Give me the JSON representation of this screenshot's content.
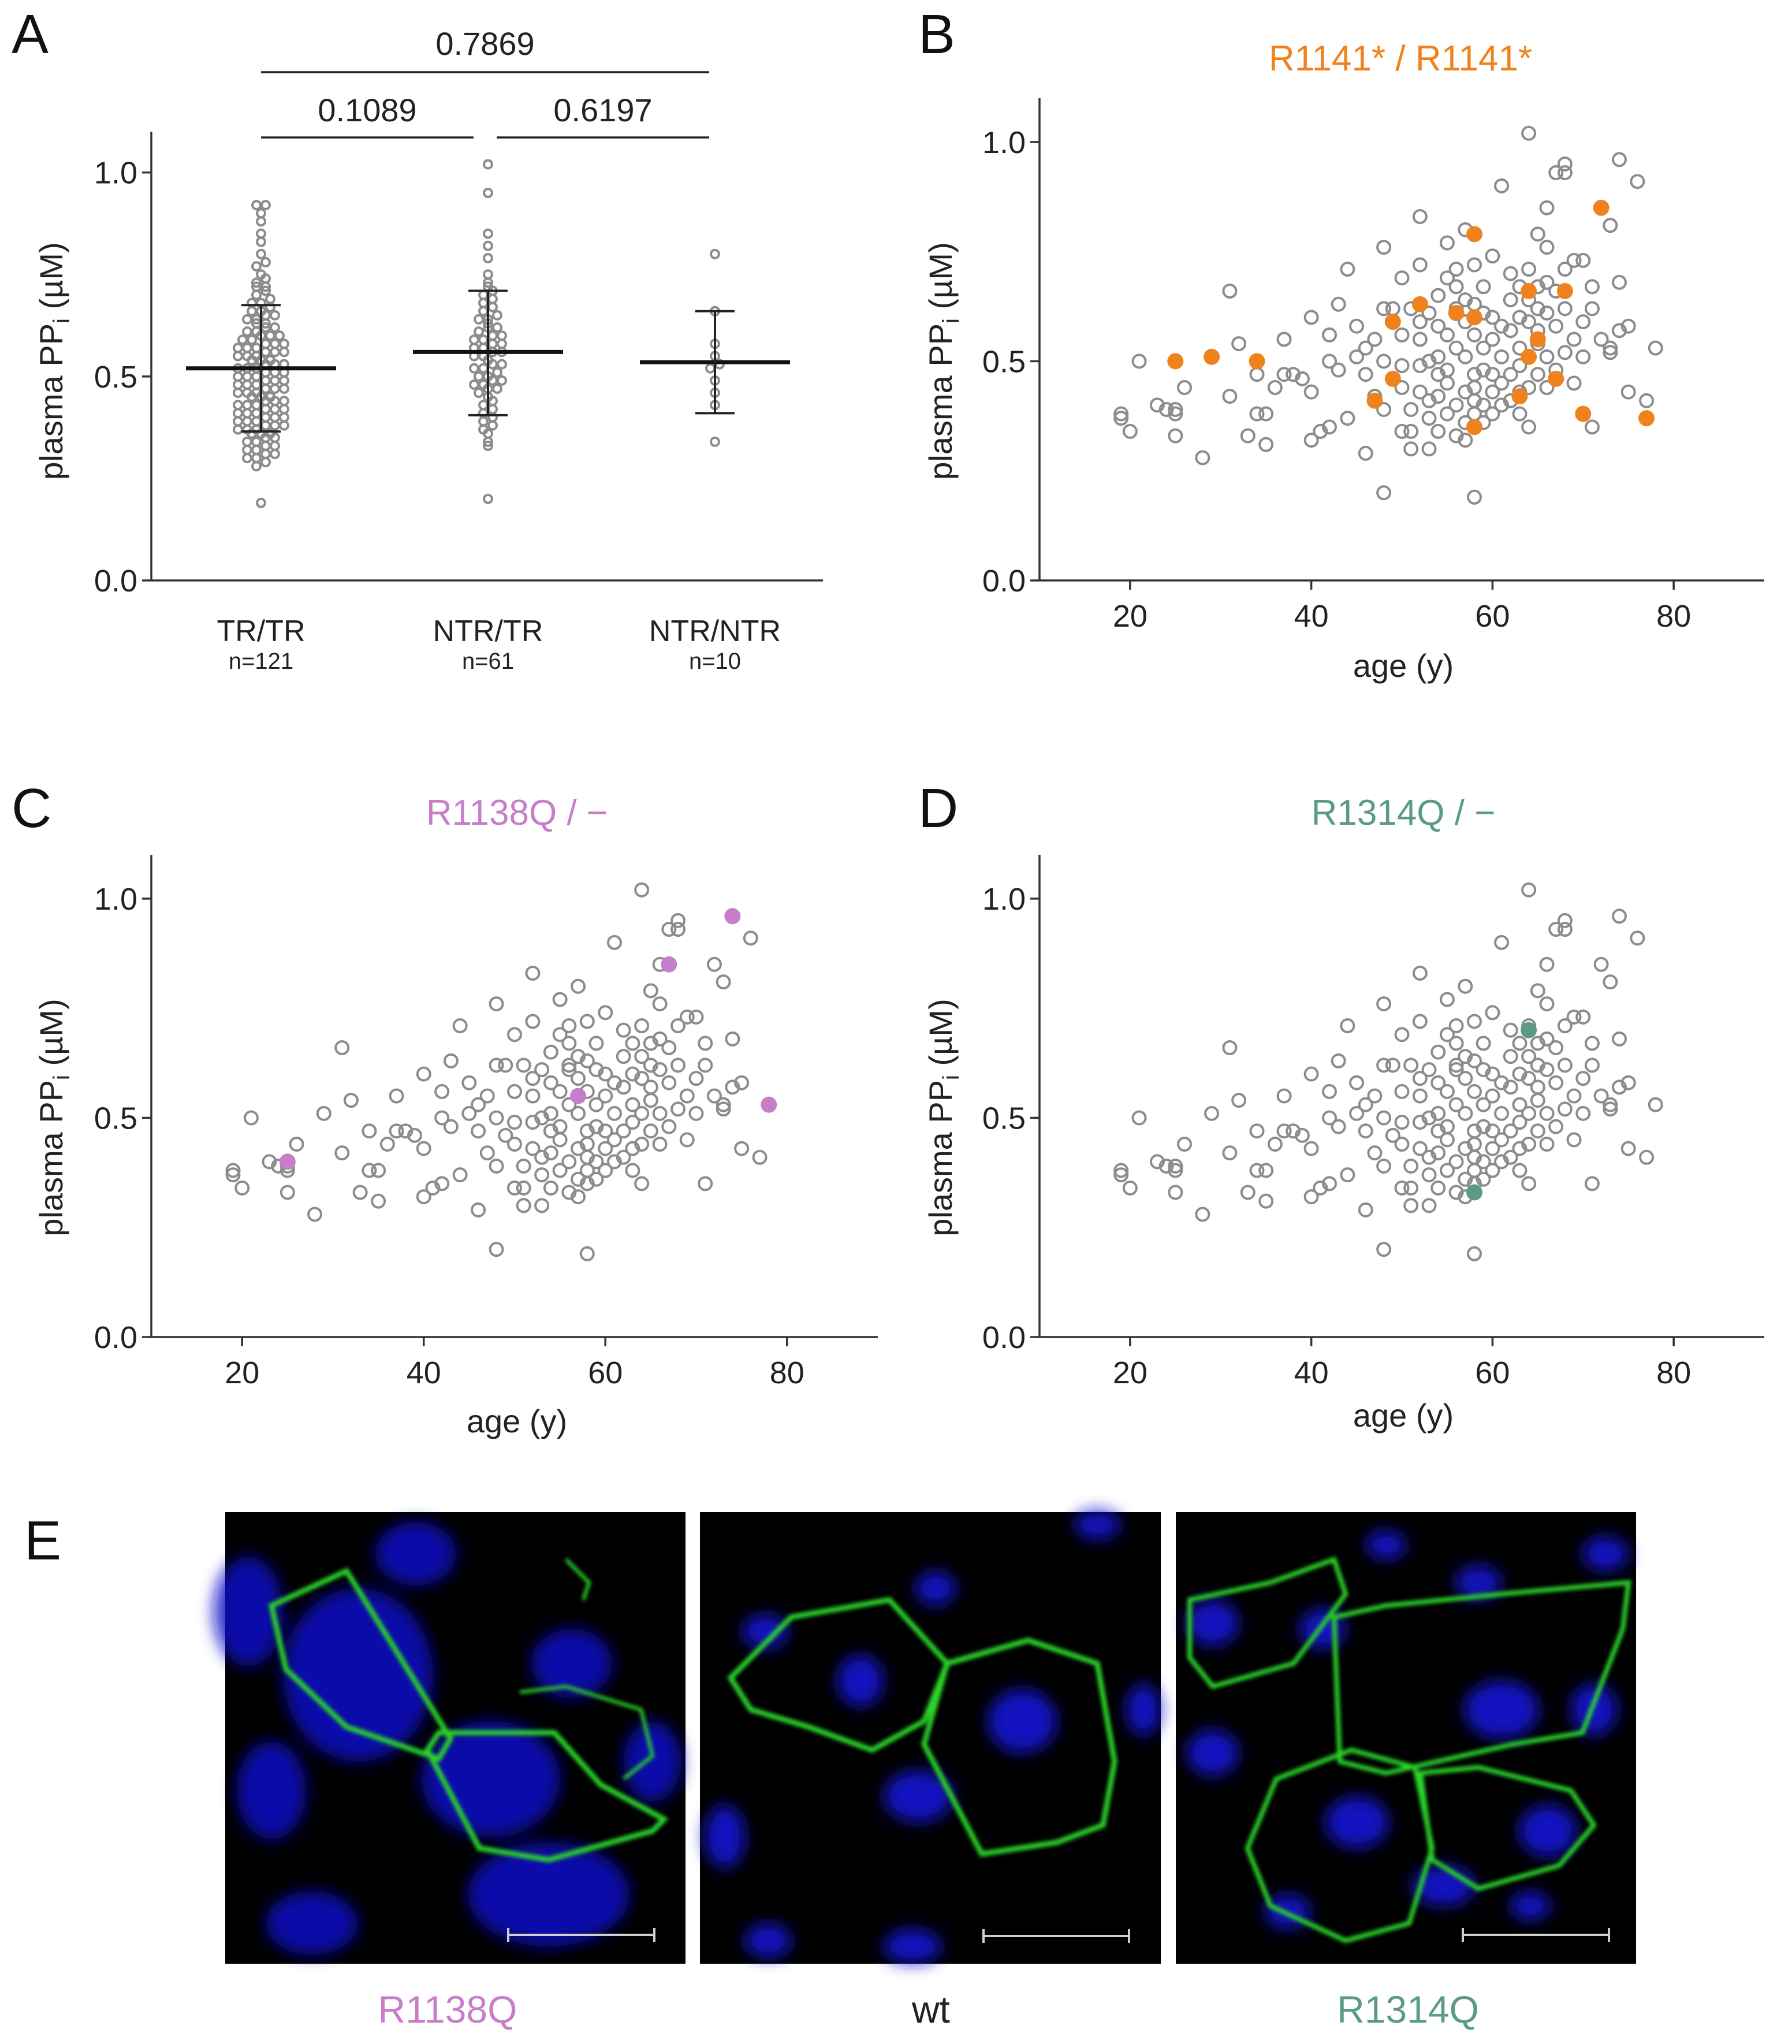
{
  "figure": {
    "panel_letters": [
      "A",
      "B",
      "C",
      "D",
      "E"
    ],
    "colors": {
      "background_point": "#8c8c8c",
      "R1141": "#f0821e",
      "R1138Q": "#c77ec9",
      "R1314Q": "#5b9a86",
      "wt": "#222222",
      "membrane_stain": "#2bd62b",
      "nuclear_stain": "#1414e6"
    }
  },
  "background_cohort": [
    [
      19,
      0.38
    ],
    [
      19,
      0.37
    ],
    [
      20,
      0.34
    ],
    [
      21,
      0.5
    ],
    [
      23,
      0.4
    ],
    [
      24,
      0.39
    ],
    [
      25,
      0.39
    ],
    [
      25,
      0.38
    ],
    [
      25,
      0.33
    ],
    [
      26,
      0.44
    ],
    [
      28,
      0.28
    ],
    [
      29,
      0.51
    ],
    [
      31,
      0.42
    ],
    [
      31,
      0.66
    ],
    [
      32,
      0.54
    ],
    [
      33,
      0.33
    ],
    [
      34,
      0.38
    ],
    [
      34,
      0.47
    ],
    [
      35,
      0.31
    ],
    [
      35,
      0.38
    ],
    [
      36,
      0.44
    ],
    [
      37,
      0.47
    ],
    [
      37,
      0.55
    ],
    [
      38,
      0.47
    ],
    [
      39,
      0.46
    ],
    [
      40,
      0.32
    ],
    [
      40,
      0.43
    ],
    [
      40,
      0.6
    ],
    [
      41,
      0.34
    ],
    [
      42,
      0.35
    ],
    [
      42,
      0.5
    ],
    [
      42,
      0.56
    ],
    [
      43,
      0.48
    ],
    [
      43,
      0.63
    ],
    [
      44,
      0.37
    ],
    [
      44,
      0.71
    ],
    [
      45,
      0.51
    ],
    [
      45,
      0.58
    ],
    [
      46,
      0.29
    ],
    [
      46,
      0.53
    ],
    [
      47,
      0.42
    ],
    [
      48,
      0.2
    ],
    [
      48,
      0.39
    ],
    [
      48,
      0.5
    ],
    [
      48,
      0.62
    ],
    [
      48,
      0.76
    ],
    [
      49,
      0.46
    ],
    [
      49,
      0.62
    ],
    [
      50,
      0.34
    ],
    [
      50,
      0.49
    ],
    [
      50,
      0.56
    ],
    [
      50,
      0.69
    ],
    [
      51,
      0.34
    ],
    [
      51,
      0.3
    ],
    [
      51,
      0.62
    ],
    [
      51,
      0.39
    ],
    [
      52,
      0.55
    ],
    [
      52,
      0.49
    ],
    [
      52,
      0.43
    ],
    [
      52,
      0.72
    ],
    [
      52,
      0.83
    ],
    [
      53,
      0.37
    ],
    [
      53,
      0.3
    ],
    [
      53,
      0.5
    ],
    [
      53,
      0.61
    ],
    [
      53,
      0.41
    ],
    [
      54,
      0.51
    ],
    [
      54,
      0.47
    ],
    [
      54,
      0.58
    ],
    [
      54,
      0.34
    ],
    [
      54,
      0.65
    ],
    [
      55,
      0.48
    ],
    [
      55,
      0.56
    ],
    [
      55,
      0.38
    ],
    [
      55,
      0.69
    ],
    [
      55,
      0.77
    ],
    [
      55,
      0.45
    ],
    [
      56,
      0.4
    ],
    [
      56,
      0.53
    ],
    [
      56,
      0.62
    ],
    [
      56,
      0.33
    ],
    [
      56,
      0.61
    ],
    [
      56,
      0.71
    ],
    [
      57,
      0.36
    ],
    [
      57,
      0.43
    ],
    [
      57,
      0.51
    ],
    [
      57,
      0.59
    ],
    [
      57,
      0.32
    ],
    [
      57,
      0.8
    ],
    [
      57,
      0.64
    ],
    [
      58,
      0.35
    ],
    [
      58,
      0.38
    ],
    [
      58,
      0.41
    ],
    [
      58,
      0.44
    ],
    [
      58,
      0.47
    ],
    [
      58,
      0.19
    ],
    [
      58,
      0.63
    ],
    [
      58,
      0.72
    ],
    [
      59,
      0.4
    ],
    [
      59,
      0.53
    ],
    [
      59,
      0.36
    ],
    [
      59,
      0.67
    ],
    [
      59,
      0.48
    ],
    [
      60,
      0.43
    ],
    [
      60,
      0.55
    ],
    [
      60,
      0.6
    ],
    [
      60,
      0.38
    ],
    [
      60,
      0.74
    ],
    [
      61,
      0.4
    ],
    [
      61,
      0.51
    ],
    [
      61,
      0.45
    ],
    [
      61,
      0.9
    ],
    [
      61,
      0.58
    ],
    [
      62,
      0.47
    ],
    [
      62,
      0.57
    ],
    [
      62,
      0.64
    ],
    [
      62,
      0.7
    ],
    [
      63,
      0.43
    ],
    [
      63,
      0.53
    ],
    [
      63,
      0.6
    ],
    [
      63,
      0.67
    ],
    [
      63,
      0.38
    ],
    [
      64,
      0.44
    ],
    [
      64,
      0.51
    ],
    [
      64,
      0.59
    ],
    [
      64,
      0.64
    ],
    [
      64,
      0.71
    ],
    [
      64,
      1.02
    ],
    [
      64,
      0.35
    ],
    [
      65,
      0.47
    ],
    [
      65,
      0.57
    ],
    [
      65,
      0.62
    ],
    [
      65,
      0.67
    ],
    [
      65,
      0.79
    ],
    [
      66,
      0.44
    ],
    [
      66,
      0.51
    ],
    [
      66,
      0.68
    ],
    [
      66,
      0.76
    ],
    [
      66,
      0.85
    ],
    [
      67,
      0.48
    ],
    [
      67,
      0.58
    ],
    [
      67,
      0.93
    ],
    [
      67,
      0.66
    ],
    [
      68,
      0.95
    ],
    [
      68,
      0.52
    ],
    [
      68,
      0.62
    ],
    [
      68,
      0.71
    ],
    [
      68,
      0.93
    ],
    [
      69,
      0.45
    ],
    [
      69,
      0.55
    ],
    [
      69,
      0.73
    ],
    [
      70,
      0.51
    ],
    [
      70,
      0.59
    ],
    [
      70,
      0.73
    ],
    [
      71,
      0.35
    ],
    [
      71,
      0.62
    ],
    [
      71,
      0.67
    ],
    [
      72,
      0.55
    ],
    [
      72,
      0.85
    ],
    [
      73,
      0.53
    ],
    [
      73,
      0.81
    ],
    [
      73,
      0.52
    ],
    [
      74,
      0.57
    ],
    [
      74,
      0.68
    ],
    [
      74,
      0.96
    ],
    [
      75,
      0.58
    ],
    [
      75,
      0.43
    ],
    [
      76,
      0.91
    ],
    [
      77,
      0.41
    ],
    [
      78,
      0.53
    ],
    [
      46,
      0.47
    ],
    [
      52,
      0.59
    ],
    [
      56,
      0.67
    ],
    [
      60,
      0.47
    ],
    [
      62,
      0.41
    ],
    [
      66,
      0.61
    ],
    [
      50,
      0.44
    ],
    [
      54,
      0.42
    ],
    [
      58,
      0.56
    ],
    [
      63,
      0.49
    ],
    [
      47,
      0.55
    ],
    [
      59,
      0.61
    ],
    [
      65,
      0.54
    ]
  ],
  "panels": {
    "A": {
      "letter": "A",
      "chart_data": {
        "type": "scatter",
        "subtype": "dot-plot-with-mean-sd",
        "categories": [
          {
            "label": "TR/TR",
            "n_label": "n=121",
            "mean": 0.52,
            "sd_low": 0.365,
            "sd_high": 0.675,
            "points": [
              0.19,
              0.28,
              0.29,
              0.3,
              0.3,
              0.31,
              0.31,
              0.32,
              0.32,
              0.33,
              0.33,
              0.34,
              0.34,
              0.35,
              0.35,
              0.36,
              0.36,
              0.36,
              0.37,
              0.37,
              0.37,
              0.38,
              0.38,
              0.38,
              0.39,
              0.39,
              0.39,
              0.4,
              0.4,
              0.4,
              0.41,
              0.41,
              0.41,
              0.42,
              0.42,
              0.42,
              0.43,
              0.43,
              0.43,
              0.44,
              0.44,
              0.44,
              0.45,
              0.45,
              0.45,
              0.46,
              0.46,
              0.46,
              0.47,
              0.47,
              0.47,
              0.48,
              0.48,
              0.48,
              0.49,
              0.49,
              0.49,
              0.5,
              0.5,
              0.5,
              0.51,
              0.51,
              0.51,
              0.52,
              0.52,
              0.52,
              0.53,
              0.53,
              0.53,
              0.54,
              0.54,
              0.54,
              0.55,
              0.55,
              0.55,
              0.56,
              0.56,
              0.56,
              0.57,
              0.57,
              0.57,
              0.58,
              0.58,
              0.58,
              0.59,
              0.59,
              0.6,
              0.6,
              0.6,
              0.61,
              0.61,
              0.62,
              0.62,
              0.63,
              0.63,
              0.64,
              0.64,
              0.65,
              0.65,
              0.66,
              0.66,
              0.67,
              0.68,
              0.68,
              0.69,
              0.7,
              0.71,
              0.72,
              0.72,
              0.73,
              0.74,
              0.75,
              0.77,
              0.78,
              0.8,
              0.83,
              0.85,
              0.88,
              0.9,
              0.92,
              0.92
            ]
          },
          {
            "label": "NTR/TR",
            "n_label": "n=61",
            "mean": 0.56,
            "sd_low": 0.405,
            "sd_high": 0.71,
            "points": [
              0.2,
              0.33,
              0.34,
              0.36,
              0.37,
              0.38,
              0.39,
              0.4,
              0.41,
              0.42,
              0.43,
              0.44,
              0.45,
              0.46,
              0.47,
              0.47,
              0.48,
              0.48,
              0.49,
              0.49,
              0.5,
              0.5,
              0.51,
              0.52,
              0.52,
              0.53,
              0.53,
              0.54,
              0.55,
              0.55,
              0.56,
              0.56,
              0.57,
              0.57,
              0.58,
              0.58,
              0.59,
              0.59,
              0.6,
              0.6,
              0.61,
              0.62,
              0.62,
              0.63,
              0.64,
              0.64,
              0.65,
              0.66,
              0.67,
              0.68,
              0.69,
              0.7,
              0.71,
              0.72,
              0.73,
              0.75,
              0.79,
              0.82,
              0.85,
              0.95,
              1.02
            ]
          },
          {
            "label": "NTR/NTR",
            "n_label": "n=10",
            "mean": 0.535,
            "sd_low": 0.41,
            "sd_high": 0.66,
            "points": [
              0.34,
              0.43,
              0.46,
              0.49,
              0.52,
              0.53,
              0.55,
              0.58,
              0.66,
              0.8
            ]
          }
        ],
        "ylabel": "plasma PP",
        "ylabel_sub": "i",
        "ylabel_unit": " (µM)",
        "ylim": [
          0,
          1.1
        ],
        "yticks": [
          "0.0",
          "0.5",
          "1.0"
        ],
        "comparisons": [
          {
            "from": 0,
            "to": 1,
            "p": "0.1089"
          },
          {
            "from": 1,
            "to": 2,
            "p": "0.6197"
          },
          {
            "from": 0,
            "to": 2,
            "p": "0.7869"
          }
        ]
      }
    },
    "B": {
      "letter": "B",
      "chart_data": {
        "type": "scatter",
        "title": "R1141* / R1141*",
        "title_color": "#f0821e",
        "xlabel": "age (y)",
        "ylabel": "plasma PP",
        "ylabel_sub": "i",
        "ylabel_unit": " (µM)",
        "xlim": [
          10,
          90
        ],
        "ylim": [
          0,
          1.1
        ],
        "xticks": [
          "20",
          "40",
          "60",
          "80"
        ],
        "yticks": [
          "0.0",
          "0.5",
          "1.0"
        ],
        "highlight_color": "#f0821e",
        "highlight": [
          [
            25,
            0.5
          ],
          [
            29,
            0.51
          ],
          [
            34,
            0.5
          ],
          [
            47,
            0.41
          ],
          [
            49,
            0.46
          ],
          [
            49,
            0.59
          ],
          [
            52,
            0.63
          ],
          [
            56,
            0.61
          ],
          [
            58,
            0.79
          ],
          [
            58,
            0.6
          ],
          [
            58,
            0.35
          ],
          [
            63,
            0.42
          ],
          [
            64,
            0.51
          ],
          [
            64,
            0.66
          ],
          [
            65,
            0.55
          ],
          [
            67,
            0.46
          ],
          [
            68,
            0.66
          ],
          [
            70,
            0.38
          ],
          [
            72,
            0.85
          ],
          [
            77,
            0.37
          ]
        ]
      }
    },
    "C": {
      "letter": "C",
      "chart_data": {
        "type": "scatter",
        "title": "R1138Q / −",
        "title_color": "#c77ec9",
        "xlabel": "age (y)",
        "ylabel": "plasma PP",
        "ylabel_sub": "i",
        "ylabel_unit": " (µM)",
        "xlim": [
          10,
          90
        ],
        "ylim": [
          0,
          1.1
        ],
        "xticks": [
          "20",
          "40",
          "60",
          "80"
        ],
        "yticks": [
          "0.0",
          "0.5",
          "1.0"
        ],
        "highlight_color": "#c77ec9",
        "highlight": [
          [
            25,
            0.4
          ],
          [
            57,
            0.55
          ],
          [
            67,
            0.85
          ],
          [
            74,
            0.96
          ],
          [
            78,
            0.53
          ]
        ]
      }
    },
    "D": {
      "letter": "D",
      "chart_data": {
        "type": "scatter",
        "title": "R1314Q / −",
        "title_color": "#5b9a86",
        "xlabel": "age (y)",
        "ylabel": "plasma PP",
        "ylabel_sub": "i",
        "ylabel_unit": " (µM)",
        "xlim": [
          10,
          90
        ],
        "ylim": [
          0,
          1.1
        ],
        "xticks": [
          "20",
          "40",
          "60",
          "80"
        ],
        "yticks": [
          "0.0",
          "0.5",
          "1.0"
        ],
        "highlight_color": "#5b9a86",
        "highlight": [
          [
            58,
            0.33
          ],
          [
            64,
            0.7
          ]
        ]
      }
    },
    "E": {
      "letter": "E",
      "images": [
        {
          "caption": "R1138Q",
          "caption_color": "#c77ec9"
        },
        {
          "caption": "wt",
          "caption_color": "#222222"
        },
        {
          "caption": "R1314Q",
          "caption_color": "#5b9a86"
        }
      ]
    }
  }
}
